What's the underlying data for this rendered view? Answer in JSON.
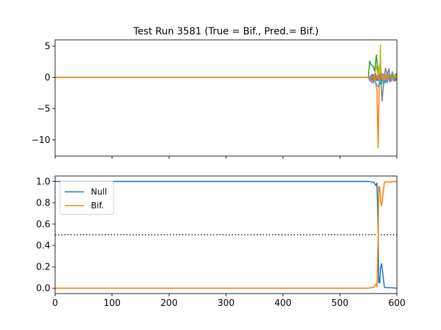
{
  "chart_data": [
    {
      "type": "line",
      "title": "Test Run 3581 (True = Bif., Pred.= Bif.)",
      "xlabel": "",
      "ylabel": "",
      "xlim": [
        0,
        600
      ],
      "ylim": [
        -12.6,
        6
      ],
      "yticks": [
        5,
        0,
        -5,
        -10
      ],
      "x_ticklabels_shown": false,
      "series": [
        {
          "color": "#1f77b4",
          "x": [
            0,
            550,
            553,
            556,
            559,
            562,
            565,
            568,
            571,
            574,
            577,
            580,
            583,
            586,
            589,
            592,
            595,
            598,
            600
          ],
          "values": [
            0,
            0,
            -0.6,
            0.4,
            -0.9,
            0.7,
            -0.3,
            0.5,
            -1.1,
            0.6,
            -0.4,
            0.3,
            -0.8,
            0.5,
            -0.2,
            0.4,
            -0.6,
            0.2,
            0.1
          ]
        },
        {
          "color": "#ff7f0e",
          "x": [
            0,
            555,
            558,
            561,
            563,
            565,
            567,
            569,
            571,
            574,
            577,
            580,
            584,
            588,
            592,
            596,
            600
          ],
          "values": [
            0,
            0,
            -0.6,
            0.4,
            -1.2,
            -2,
            -11.3,
            -0.8,
            0.5,
            -0.3,
            0.3,
            -0.5,
            0.2,
            -0.3,
            0.2,
            -0.1,
            0
          ]
        },
        {
          "color": "#2ca02c",
          "x": [
            0,
            550,
            552,
            555,
            558,
            561,
            564,
            566,
            568,
            571,
            574,
            577,
            580,
            584,
            588,
            592,
            596,
            600
          ],
          "values": [
            0,
            0,
            2.6,
            2.0,
            1.8,
            1.0,
            3.6,
            1.5,
            0.6,
            0.2,
            -0.4,
            0.3,
            0.1,
            -0.3,
            0.2,
            -0.1,
            0.1,
            0
          ]
        },
        {
          "color": "#d62728",
          "x": [
            0,
            550,
            555,
            560,
            565,
            570,
            575,
            580,
            585,
            590,
            595,
            600
          ],
          "values": [
            0,
            0,
            -0.4,
            0.3,
            -0.5,
            0.3,
            -0.6,
            0.4,
            -0.3,
            0.2,
            -0.3,
            0.1
          ]
        },
        {
          "color": "#9467bd",
          "x": [
            0,
            552,
            557,
            562,
            567,
            572,
            577,
            582,
            587,
            592,
            597,
            600
          ],
          "values": [
            0,
            0,
            0.5,
            -0.4,
            0.6,
            -0.8,
            0.5,
            -0.5,
            0.6,
            -0.3,
            0.4,
            0.1
          ]
        },
        {
          "color": "#8c564b",
          "x": [
            0,
            553,
            558,
            563,
            568,
            573,
            578,
            583,
            588,
            593,
            598,
            600
          ],
          "values": [
            0,
            0,
            -0.7,
            0.3,
            -0.5,
            0.6,
            -0.9,
            0.4,
            -0.7,
            0.3,
            -0.5,
            -0.2
          ]
        },
        {
          "color": "#e377c2",
          "x": [
            0,
            551,
            556,
            561,
            566,
            571,
            576,
            581,
            586,
            591,
            596,
            600
          ],
          "values": [
            0,
            0,
            -0.9,
            -0.5,
            0.4,
            -0.7,
            0.2,
            -0.4,
            0.5,
            -0.6,
            0.3,
            -0.2
          ]
        },
        {
          "color": "#7f7f7f",
          "x": [
            0,
            556,
            561,
            566,
            571,
            574,
            577,
            580,
            583,
            586,
            589,
            592,
            595,
            598,
            600
          ],
          "values": [
            0,
            0,
            0.6,
            -0.5,
            0.8,
            -3.8,
            -0.6,
            1.5,
            0.4,
            1.4,
            -0.5,
            0.9,
            -0.4,
            0.6,
            0.3
          ]
        },
        {
          "color": "#bcbd22",
          "x": [
            0,
            560,
            564,
            567,
            569,
            570,
            571,
            572,
            574,
            577,
            580,
            584,
            588,
            592,
            596,
            600
          ],
          "values": [
            0,
            0,
            1.8,
            0.2,
            2.0,
            0.5,
            5.2,
            1.2,
            0.3,
            -0.6,
            0.5,
            -0.4,
            0.3,
            -0.2,
            0.4,
            0.1
          ]
        },
        {
          "color": "#17becf",
          "x": [
            0,
            553,
            557,
            561,
            564,
            567,
            570,
            573,
            576,
            580,
            584,
            588,
            592,
            596,
            600
          ],
          "values": [
            0,
            0,
            -0.6,
            -0.3,
            -1.1,
            -1.5,
            -0.6,
            -1.2,
            -0.4,
            -0.8,
            -0.2,
            -0.5,
            0.2,
            -0.3,
            0
          ]
        },
        {
          "color": "#ff7f0e",
          "x": [
            0,
            549,
            553,
            557,
            561,
            565,
            568,
            572,
            576,
            580,
            584,
            588,
            592,
            596,
            600
          ],
          "values": [
            0,
            0,
            -0.2,
            0.1,
            -0.3,
            0.2,
            -0.4,
            0.3,
            -0.2,
            0.1,
            -0.3,
            0.2,
            -0.1,
            0.1,
            0
          ]
        }
      ]
    },
    {
      "type": "line",
      "title": "",
      "xlabel": "",
      "ylabel": "",
      "xlim": [
        0,
        600
      ],
      "ylim": [
        -0.05,
        1.05
      ],
      "xticks": [
        0,
        100,
        200,
        300,
        400,
        500,
        600
      ],
      "yticks": [
        0.0,
        0.2,
        0.4,
        0.6,
        0.8,
        1.0
      ],
      "legend_position": "upper-left",
      "threshold": 0.5,
      "series": [
        {
          "name": "Null",
          "color": "#1f77b4",
          "x": [
            0,
            550,
            555,
            560,
            563,
            565,
            567,
            568,
            569,
            570,
            571,
            573,
            575,
            578,
            582,
            590,
            600
          ],
          "values": [
            1.0,
            1.0,
            0.995,
            0.99,
            0.96,
            0.985,
            0.55,
            0.05,
            0.1,
            0.05,
            0.18,
            0.23,
            0.15,
            0.01,
            0.005,
            0.005,
            0.0
          ]
        },
        {
          "name": "Bif.",
          "color": "#ff7f0e",
          "x": [
            0,
            550,
            555,
            560,
            563,
            565,
            567,
            568,
            569,
            570,
            571,
            573,
            575,
            578,
            582,
            590,
            600
          ],
          "values": [
            0.0,
            0.0,
            0.005,
            0.01,
            0.04,
            0.015,
            0.45,
            0.95,
            0.9,
            0.95,
            0.82,
            0.77,
            0.85,
            0.99,
            0.995,
            0.995,
            1.0
          ]
        }
      ]
    }
  ]
}
